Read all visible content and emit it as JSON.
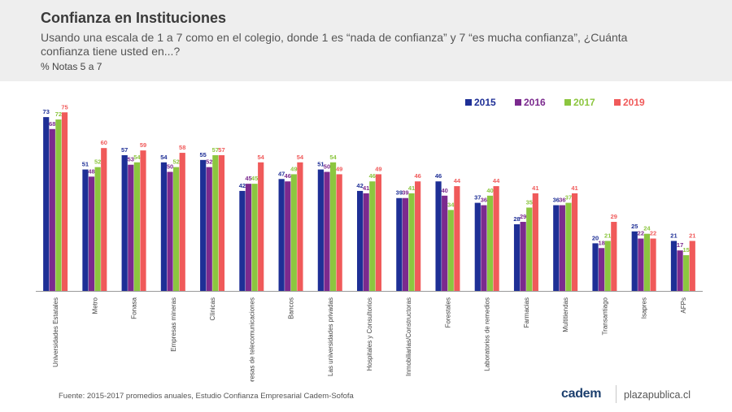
{
  "header": {
    "title": "Confianza en Instituciones",
    "subtitle": "Usando una escala de 1 a 7 como en el colegio, donde 1 es “nada de confianza” y 7 “es mucha confianza”, ¿Cuánta confianza tiene usted en...?",
    "unit": "% Notas 5 a 7"
  },
  "footer": {
    "source": "Fuente: 2015-2017 promedios anuales, Estudio Confianza Empresarial Cadem-Sofofa",
    "logo": "cadem",
    "site": "plazapublica.cl"
  },
  "chart_data": {
    "type": "bar",
    "title": "",
    "xlabel": "",
    "ylabel": "",
    "ylim": [
      0,
      80
    ],
    "grid": false,
    "legend_position": "top-right",
    "categories": [
      "Universidades Estatales",
      "Metro",
      "Fonasa",
      "Empresas mineras",
      "Clínicas",
      "Empresas de telecomunicaciones",
      "Bancos",
      "Las universidades privadas",
      "Hospitales y Consultorios",
      "Inmobiliarias/Constructoras",
      "Forestales",
      "Laboratorios de remedios",
      "Farmacias",
      "Multitiendas",
      "Transantiago",
      "Isapres",
      "AFPs"
    ],
    "series": [
      {
        "name": "2015",
        "color": "#1e2f96",
        "values": [
          73,
          51,
          57,
          54,
          55,
          42,
          47,
          51,
          42,
          39,
          46,
          37,
          28,
          36,
          20,
          25,
          21
        ]
      },
      {
        "name": "2016",
        "color": "#7b2a8e",
        "values": [
          68,
          48,
          53,
          50,
          52,
          45,
          46,
          50,
          41,
          39,
          40,
          36,
          29,
          36,
          18,
          22,
          17
        ]
      },
      {
        "name": "2017",
        "color": "#8cc63f",
        "values": [
          72,
          52,
          54,
          52,
          57,
          45,
          49,
          54,
          46,
          41,
          34,
          40,
          35,
          37,
          21,
          24,
          15
        ]
      },
      {
        "name": "2019",
        "color": "#f05a5a",
        "values": [
          75,
          60,
          59,
          58,
          57,
          54,
          54,
          49,
          49,
          46,
          44,
          44,
          41,
          41,
          29,
          22,
          21
        ]
      }
    ]
  }
}
